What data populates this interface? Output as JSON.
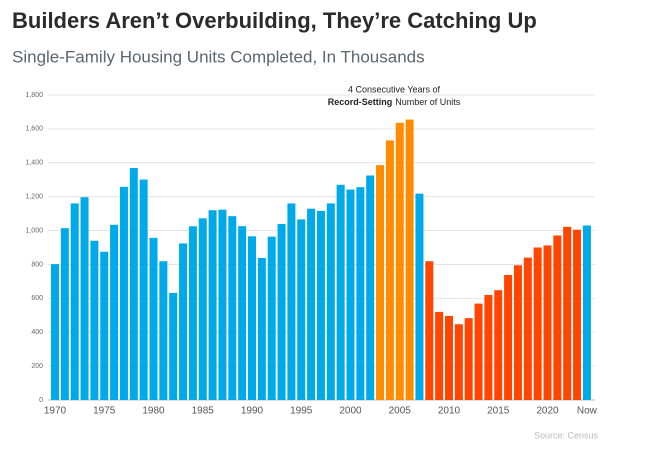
{
  "chart_data": {
    "type": "bar",
    "title": "Builders Aren’t Overbuilding, They’re Catching Up",
    "subtitle": "Single-Family Housing Units Completed, In Thousands",
    "annotation": {
      "line1": "4 Consecutive Years of",
      "bold": "Record-Setting",
      "rest": "Number of Units"
    },
    "source": "Source: Census",
    "categories": [
      "1970",
      null,
      null,
      null,
      null,
      "1975",
      null,
      null,
      null,
      null,
      "1980",
      null,
      null,
      null,
      null,
      "1985",
      null,
      null,
      null,
      null,
      "1990",
      null,
      null,
      null,
      null,
      "1995",
      null,
      null,
      null,
      null,
      "2000",
      null,
      null,
      null,
      null,
      "2005",
      null,
      null,
      null,
      null,
      "2010",
      null,
      null,
      null,
      null,
      "2015",
      null,
      null,
      null,
      null,
      "2020",
      null,
      null,
      null,
      "Now"
    ],
    "values": [
      802,
      1014,
      1160,
      1197,
      940,
      875,
      1034,
      1258,
      1369,
      1301,
      957,
      819,
      632,
      924,
      1025,
      1072,
      1120,
      1123,
      1085,
      1026,
      966,
      838,
      964,
      1039,
      1160,
      1066,
      1129,
      1116,
      1160,
      1270,
      1242,
      1256,
      1325,
      1386,
      1532,
      1636,
      1655,
      1218,
      819,
      520,
      496,
      447,
      483,
      569,
      620,
      648,
      738,
      795,
      840,
      900,
      912,
      971,
      1022,
      1005,
      1030
    ],
    "colors": [
      "#00a9e8",
      "#00a9e8",
      "#00a9e8",
      "#00a9e8",
      "#00a9e8",
      "#00a9e8",
      "#00a9e8",
      "#00a9e8",
      "#00a9e8",
      "#00a9e8",
      "#00a9e8",
      "#00a9e8",
      "#00a9e8",
      "#00a9e8",
      "#00a9e8",
      "#00a9e8",
      "#00a9e8",
      "#00a9e8",
      "#00a9e8",
      "#00a9e8",
      "#00a9e8",
      "#00a9e8",
      "#00a9e8",
      "#00a9e8",
      "#00a9e8",
      "#00a9e8",
      "#00a9e8",
      "#00a9e8",
      "#00a9e8",
      "#00a9e8",
      "#00a9e8",
      "#00a9e8",
      "#00a9e8",
      "#ff8c00",
      "#ff8c00",
      "#ff8c00",
      "#ff8c00",
      "#00a9e8",
      "#ff4500",
      "#ff4500",
      "#ff4500",
      "#ff4500",
      "#ff4500",
      "#ff4500",
      "#ff4500",
      "#ff4500",
      "#ff4500",
      "#ff4500",
      "#ff4500",
      "#ff4500",
      "#ff4500",
      "#ff4500",
      "#ff4500",
      "#ff4500",
      "#00a9e8"
    ],
    "ylim": [
      0,
      1800
    ],
    "yticks": [
      0,
      200,
      400,
      600,
      800,
      {
        "value": 1000,
        "label": "1,000"
      },
      {
        "value": 1200,
        "label": "1,200"
      },
      {
        "value": 1400,
        "label": "1,400"
      },
      {
        "value": 1600,
        "label": "1,600"
      },
      {
        "value": 1800,
        "label": "1,800"
      }
    ],
    "grid": true
  }
}
